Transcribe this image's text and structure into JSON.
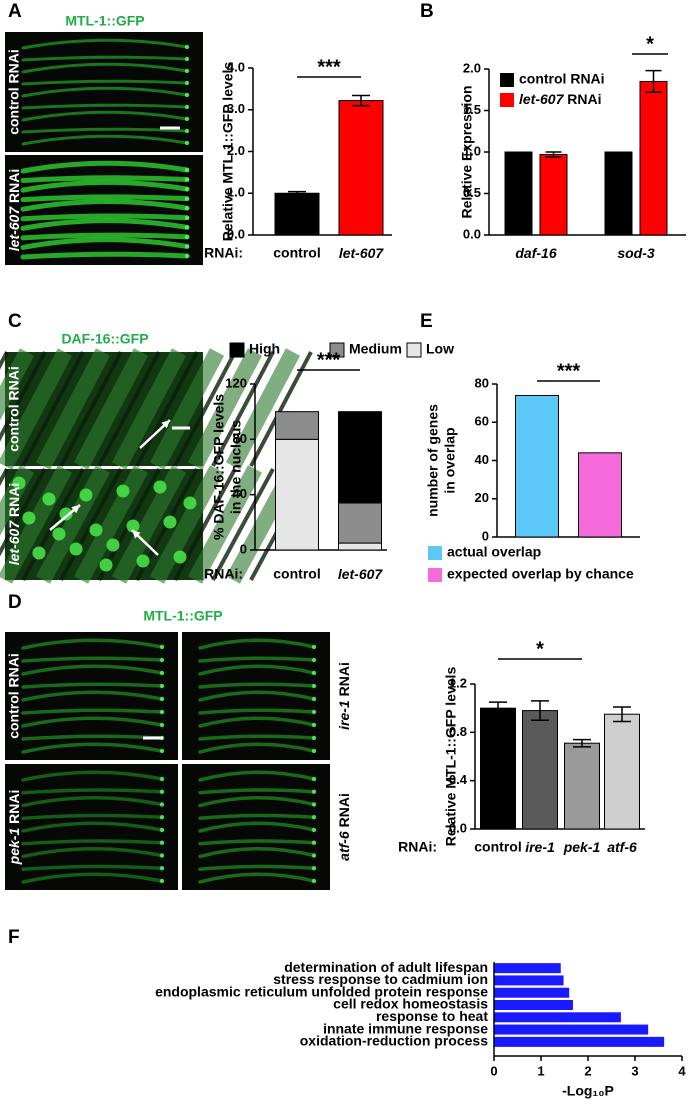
{
  "images": [
    {
      "title": "MTL-1::GFP",
      "labels": [
        "control RNAi",
        "let-607 RNAi"
      ]
    },
    {
      "title": "DAF-16::GFP",
      "labels": [
        "control RNAi",
        "let-607 RNAi"
      ]
    },
    {
      "title": "MTL-1::GFP",
      "labels": [
        "control RNAi",
        "ire-1 RNAi",
        "pek-1 RNAi",
        "atf-6 RNAi"
      ]
    }
  ],
  "chart_data": [
    {
      "panel": "A",
      "type": "bar",
      "ylabel": [
        "Relative MTL-1::GFP levels"
      ],
      "x_prefix": "RNAi:",
      "categories": [
        "control",
        "let-607"
      ],
      "values": [
        1.0,
        3.22
      ],
      "errors": [
        0.04,
        0.12
      ],
      "colors": [
        "#000000",
        "#ff0000"
      ],
      "ylim": [
        0,
        4
      ],
      "yticks": [
        {
          "value": 0,
          "label": "0.0"
        },
        {
          "value": 1,
          "label": "1.0"
        },
        {
          "value": 2,
          "label": "2.0"
        },
        {
          "value": 3,
          "label": "3.0"
        },
        {
          "value": 4,
          "label": "4.0"
        }
      ],
      "annotation": "***"
    },
    {
      "panel": "B",
      "type": "bar",
      "ylabel": [
        "Relative Expression"
      ],
      "categories": [
        "daf-16",
        "sod-3"
      ],
      "series": [
        {
          "name": "control RNAi",
          "color": "#000000",
          "values": [
            1.0,
            1.0
          ]
        },
        {
          "name": "let-607 RNAi",
          "color": "#ff0000",
          "values": [
            0.97,
            1.85
          ],
          "errors": [
            0.03,
            0.13
          ]
        }
      ],
      "ylim": [
        0,
        2
      ],
      "yticks": [
        {
          "value": 0,
          "label": "0.0"
        },
        {
          "value": 0.5,
          "label": "0.5"
        },
        {
          "value": 1,
          "label": "1.0"
        },
        {
          "value": 1.5,
          "label": "1.5"
        },
        {
          "value": 2,
          "label": "2.0"
        }
      ],
      "annotation": "*"
    },
    {
      "panel": "C",
      "type": "stacked_bar",
      "ylabel": [
        "% DAF-16::GFP levels",
        "in the nucleus"
      ],
      "x_prefix": "RNAi:",
      "categories": [
        "control",
        "let-607"
      ],
      "series": [
        {
          "name": "Low",
          "color": "#e6e6e6",
          "values": [
            80,
            5
          ]
        },
        {
          "name": "Medium",
          "color": "#8c8c8c",
          "values": [
            20,
            29
          ]
        },
        {
          "name": "High",
          "color": "#000000",
          "values": [
            0,
            66
          ]
        }
      ],
      "ylim": [
        0,
        120
      ],
      "yticks": [
        0,
        40,
        80,
        120
      ],
      "annotation": "***"
    },
    {
      "panel": "E",
      "type": "bar",
      "ylabel": [
        "number of genes",
        "in overlap"
      ],
      "categories": [
        null
      ],
      "series": [
        {
          "name": "actual overlap",
          "color": "#5bc8f7",
          "values": [
            74
          ]
        },
        {
          "name": "expected overlap by chance",
          "color": "#f56bdc",
          "values": [
            44
          ]
        }
      ],
      "ylim": [
        0,
        80
      ],
      "yticks": [
        0,
        20,
        40,
        60,
        80
      ],
      "annotation": "***"
    },
    {
      "panel": "D",
      "type": "bar",
      "ylabel": [
        "Relative MTL-1::GFP levels"
      ],
      "x_prefix": "RNAi:",
      "categories": [
        "control",
        "ire-1",
        "pek-1",
        "atf-6"
      ],
      "values": [
        1.0,
        0.98,
        0.71,
        0.95
      ],
      "errors": [
        0.05,
        0.08,
        0.03,
        0.06
      ],
      "colors": [
        "#000000",
        "#5a5a5a",
        "#9a9a9a",
        "#cfcfcf"
      ],
      "ylim": [
        0,
        1.2
      ],
      "yticks": [
        {
          "value": 0,
          "label": "0.0"
        },
        {
          "value": 0.4,
          "label": "0.4"
        },
        {
          "value": 0.8,
          "label": "0.8"
        },
        {
          "value": 1.2,
          "label": "1.2"
        }
      ],
      "annotation": "*"
    },
    {
      "panel": "F",
      "type": "barh",
      "xlabel": "-Log₁₀P",
      "color": "#1a1aff",
      "categories": [
        "determination of adult lifespan",
        "stress response to cadmium ion",
        "endoplasmic reticulum unfolded protein response",
        "cell redox homeostasis",
        "response to heat",
        "innate immune response",
        "oxidation-reduction process"
      ],
      "values": [
        1.42,
        1.48,
        1.6,
        1.68,
        2.7,
        3.28,
        3.62
      ],
      "xlim": [
        0,
        4
      ],
      "xticks": [
        0,
        1,
        2,
        3,
        4
      ]
    }
  ]
}
